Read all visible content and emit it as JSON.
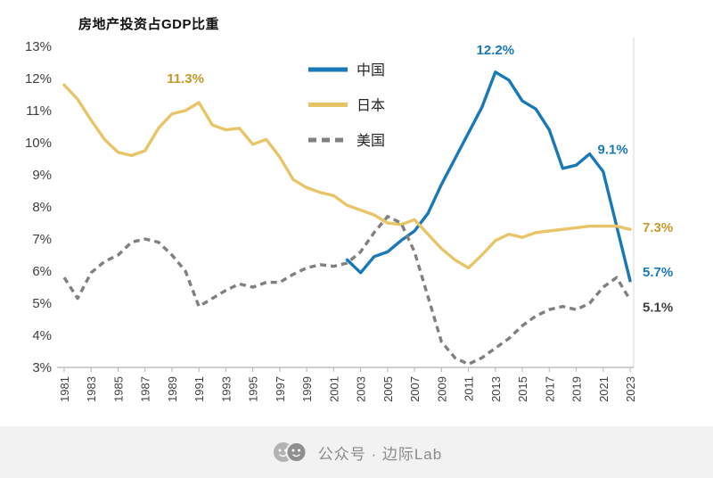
{
  "chart_data": {
    "type": "line",
    "title": "房地产投资占GDP比重",
    "x_range": [
      1981,
      2023
    ],
    "ylim": [
      3,
      13
    ],
    "y_tick_step": 1,
    "y_tick_suffix": "%",
    "x_tick_years": [
      1981,
      1983,
      1985,
      1987,
      1989,
      1991,
      1993,
      1995,
      1997,
      1999,
      2001,
      2003,
      2005,
      2007,
      2009,
      2011,
      2013,
      2015,
      2017,
      2019,
      2021,
      2023
    ],
    "grid": false,
    "legend_position": "top-center-inside",
    "series": [
      {
        "key": "china",
        "name": "中国",
        "color": "#1878B8",
        "dash": "",
        "values": [
          null,
          null,
          null,
          null,
          null,
          null,
          null,
          null,
          null,
          null,
          null,
          null,
          null,
          null,
          null,
          null,
          null,
          null,
          null,
          null,
          null,
          6.35,
          5.95,
          6.45,
          6.6,
          6.95,
          7.25,
          7.8,
          8.7,
          9.5,
          10.3,
          11.1,
          12.2,
          11.95,
          11.3,
          11.05,
          10.4,
          9.2,
          9.3,
          9.65,
          9.1,
          7.4,
          5.7
        ]
      },
      {
        "key": "japan",
        "name": "日本",
        "color": "#E7C568",
        "dash": "",
        "values": [
          11.8,
          11.35,
          10.7,
          10.1,
          9.7,
          9.6,
          9.75,
          10.45,
          10.9,
          11.0,
          11.25,
          10.55,
          10.4,
          10.45,
          9.95,
          10.1,
          9.55,
          8.85,
          8.6,
          8.45,
          8.35,
          8.05,
          7.9,
          7.75,
          7.5,
          7.45,
          7.6,
          7.15,
          6.7,
          6.35,
          6.1,
          6.5,
          6.95,
          7.15,
          7.05,
          7.2,
          7.25,
          7.3,
          7.35,
          7.4,
          7.4,
          7.4,
          7.3
        ]
      },
      {
        "key": "us",
        "name": "美国",
        "color": "#808080",
        "dash": "7 5",
        "values": [
          5.8,
          5.15,
          5.95,
          6.3,
          6.5,
          6.9,
          7.0,
          6.9,
          6.5,
          6.0,
          4.9,
          5.15,
          5.4,
          5.6,
          5.5,
          5.65,
          5.65,
          5.9,
          6.1,
          6.2,
          6.15,
          6.25,
          6.6,
          7.2,
          7.7,
          7.5,
          6.6,
          5.2,
          3.8,
          3.3,
          3.1,
          3.3,
          3.6,
          3.9,
          4.3,
          4.6,
          4.8,
          4.9,
          4.8,
          5.0,
          5.5,
          5.8,
          5.1
        ]
      }
    ],
    "annotations": [
      {
        "text": "11.3%",
        "color": "#C49A26",
        "year": 1990,
        "value": 11.3,
        "placement": "above",
        "dy": 0
      },
      {
        "text": "12.2%",
        "color": "#1878B8",
        "year": 2013,
        "value": 12.2,
        "placement": "above",
        "dy": 0
      },
      {
        "text": "9.1%",
        "color": "#1878B8",
        "year": 2020,
        "value": 9.1,
        "placement": "above-right",
        "dy": 0
      },
      {
        "text": "7.3%",
        "color": "#C49A26",
        "value": 7.3,
        "placement": "right",
        "dy": -2
      },
      {
        "text": "5.7%",
        "color": "#1878B8",
        "value": 5.7,
        "placement": "right",
        "dy": -10
      },
      {
        "text": "5.1%",
        "color": "#404040",
        "value": 5.1,
        "placement": "right",
        "dy": 8
      }
    ]
  },
  "footer": {
    "text": "公众号 · 边际Lab",
    "icon": "overlapping-faces-icon"
  }
}
